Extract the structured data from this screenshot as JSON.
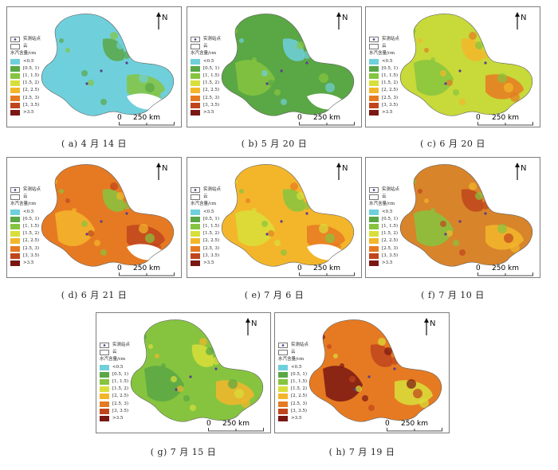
{
  "legend": {
    "site_label": "实测站点",
    "cloud_label": "云",
    "title": "水汽含量/cm",
    "classes": [
      {
        "label": "<0.5",
        "color": "#6fd0dc"
      },
      {
        "label": "[0.5, 1)",
        "color": "#5aa745"
      },
      {
        "label": "[1, 1.5)",
        "color": "#86c43f"
      },
      {
        "label": "[1.5, 2)",
        "color": "#d8df3a"
      },
      {
        "label": "[2, 2.5)",
        "color": "#f3b62b"
      },
      {
        "label": "[2.5, 3)",
        "color": "#e67a22"
      },
      {
        "label": "[3, 3.5)",
        "color": "#c0451d"
      },
      {
        "label": ">3.5",
        "color": "#7a1713"
      }
    ]
  },
  "north_label": "N",
  "scale": {
    "zero": "0",
    "distance": "250 km"
  },
  "panels": [
    {
      "caption": "( a) 4 月 14 日",
      "base": "#6fd0dc",
      "patches": [
        "#6fd0dc",
        "#5aa745",
        "#86c43f"
      ],
      "cloud_gaps": true
    },
    {
      "caption": "( b) 5 月 20 日",
      "base": "#5aa745",
      "patches": [
        "#86c43f",
        "#6fd0dc",
        "#5aa745"
      ],
      "cloud_gaps": true
    },
    {
      "caption": "( c) 6 月 20 日",
      "base": "#c8d93a",
      "patches": [
        "#86c43f",
        "#f3b62b",
        "#e67a22"
      ],
      "cloud_gaps": false
    },
    {
      "caption": "( d) 6 月 21 日",
      "base": "#e67a22",
      "patches": [
        "#f3b62b",
        "#86c43f",
        "#c0451d"
      ],
      "cloud_gaps": true
    },
    {
      "caption": "( e) 7 月 6 日",
      "base": "#f3b62b",
      "patches": [
        "#d8df3a",
        "#86c43f",
        "#e67a22"
      ],
      "cloud_gaps": true
    },
    {
      "caption": "( f) 7 月 10 日",
      "base": "#d8842a",
      "patches": [
        "#86c43f",
        "#c0451d",
        "#f3b62b"
      ],
      "cloud_gaps": false
    },
    {
      "caption": "( g) 7 月 15 日",
      "base": "#86c43f",
      "patches": [
        "#5aa745",
        "#d8df3a",
        "#f3b62b"
      ],
      "cloud_gaps": false
    },
    {
      "caption": "( h) 7 月 19 日",
      "base": "#e67a22",
      "patches": [
        "#7a1713",
        "#c0451d",
        "#d8df3a"
      ],
      "cloud_gaps": false
    }
  ]
}
